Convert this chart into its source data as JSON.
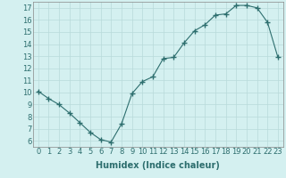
{
  "x": [
    0,
    1,
    2,
    3,
    4,
    5,
    6,
    7,
    8,
    9,
    10,
    11,
    12,
    13,
    14,
    15,
    16,
    17,
    18,
    19,
    20,
    21,
    22,
    23
  ],
  "y": [
    10.1,
    9.5,
    9.0,
    8.3,
    7.5,
    6.7,
    6.1,
    5.9,
    7.4,
    9.9,
    10.9,
    11.3,
    12.8,
    12.9,
    14.1,
    15.1,
    15.6,
    16.4,
    16.5,
    17.2,
    17.2,
    17.0,
    15.8,
    12.9
  ],
  "line_color": "#2d6e6e",
  "marker": "+",
  "marker_size": 4,
  "marker_edge_width": 1.0,
  "line_width": 0.8,
  "background_color": "#d4f0f0",
  "grid_color": "#b8dada",
  "xlabel": "Humidex (Indice chaleur)",
  "xlim": [
    -0.5,
    23.5
  ],
  "ylim": [
    5.5,
    17.5
  ],
  "yticks": [
    6,
    7,
    8,
    9,
    10,
    11,
    12,
    13,
    14,
    15,
    16,
    17
  ],
  "xticks": [
    0,
    1,
    2,
    3,
    4,
    5,
    6,
    7,
    8,
    9,
    10,
    11,
    12,
    13,
    14,
    15,
    16,
    17,
    18,
    19,
    20,
    21,
    22,
    23
  ],
  "tick_label_fontsize": 6,
  "xlabel_fontsize": 7,
  "xlabel_fontweight": "bold",
  "tick_color": "#2d6e6e",
  "label_color": "#2d6e6e"
}
